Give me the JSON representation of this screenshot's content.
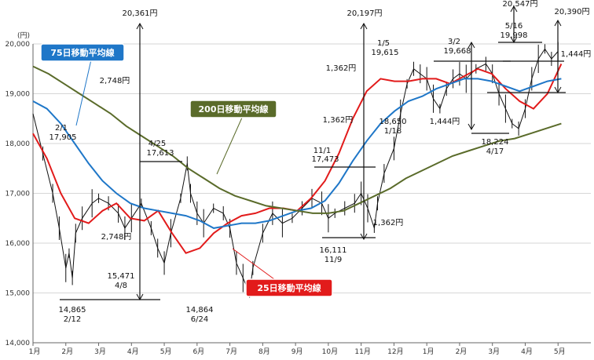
{
  "chart_data": {
    "type": "line",
    "yunit": "(円)",
    "yticks": [
      "14,000",
      "15,000",
      "16,000",
      "17,000",
      "18,000",
      "19,000",
      "20,000"
    ],
    "ylim": [
      14000,
      20000
    ],
    "xticks": [
      "1月",
      "2月",
      "3月",
      "4月",
      "5月",
      "6月",
      "7月",
      "8月",
      "9月",
      "10月",
      "11月",
      "12月",
      "1月",
      "2月",
      "3月",
      "4月",
      "5月"
    ],
    "grid": "horizontal",
    "colors": {
      "ma25": "#e21b1b",
      "ma75": "#1f77c8",
      "ma200": "#5a6b2a",
      "price": "#111111"
    },
    "series": [
      {
        "name": "25日移動平均線",
        "key": "ma25",
        "values": [
          18200,
          17700,
          17000,
          16500,
          16400,
          16650,
          16800,
          16500,
          16450,
          16650,
          16200,
          15800,
          15900,
          16200,
          16400,
          16550,
          16600,
          16700,
          16700,
          16650,
          16900,
          17250,
          17800,
          18500,
          19050,
          19300,
          19250,
          19250,
          19300,
          19300,
          19200,
          19350,
          19500,
          19400,
          19100,
          18850,
          18700,
          19000,
          19600
        ]
      },
      {
        "name": "75日移動平均線",
        "key": "ma75",
        "values": [
          18850,
          18700,
          18400,
          18000,
          17600,
          17250,
          17000,
          16800,
          16700,
          16650,
          16600,
          16550,
          16450,
          16300,
          16350,
          16400,
          16400,
          16450,
          16550,
          16650,
          16700,
          16850,
          17200,
          17650,
          18050,
          18400,
          18650,
          18850,
          18950,
          19100,
          19200,
          19300,
          19300,
          19250,
          19150,
          19050,
          19150,
          19250,
          19300
        ]
      },
      {
        "name": "200日移動平均線",
        "key": "ma200",
        "values": [
          19550,
          19400,
          19200,
          19000,
          18800,
          18600,
          18350,
          18150,
          17950,
          17750,
          17500,
          17300,
          17100,
          16950,
          16850,
          16750,
          16700,
          16650,
          16600,
          16600,
          16650,
          16800,
          16950,
          17100,
          17300,
          17450,
          17600,
          17750,
          17850,
          17950,
          18050,
          18100,
          18200,
          18300,
          18400
        ]
      }
    ],
    "price_points": [
      [
        0.0,
        18600
      ],
      [
        0.3,
        17800
      ],
      [
        0.6,
        17000
      ],
      [
        0.8,
        16300
      ],
      [
        1.0,
        15500
      ],
      [
        1.1,
        15800
      ],
      [
        1.2,
        15300
      ],
      [
        1.3,
        16200
      ],
      [
        1.5,
        16500
      ],
      [
        1.8,
        16800
      ],
      [
        2.0,
        16900
      ],
      [
        2.3,
        16800
      ],
      [
        2.6,
        16600
      ],
      [
        2.8,
        16300
      ],
      [
        3.0,
        16500
      ],
      [
        3.3,
        16800
      ],
      [
        3.6,
        16300
      ],
      [
        3.8,
        15900
      ],
      [
        4.0,
        15600
      ],
      [
        4.2,
        16200
      ],
      [
        4.5,
        16900
      ],
      [
        4.7,
        17600
      ],
      [
        4.8,
        17000
      ],
      [
        5.0,
        16600
      ],
      [
        5.2,
        16400
      ],
      [
        5.5,
        16700
      ],
      [
        5.8,
        16600
      ],
      [
        6.0,
        16300
      ],
      [
        6.2,
        15600
      ],
      [
        6.4,
        15300
      ],
      [
        6.6,
        15000
      ],
      [
        6.7,
        15500
      ],
      [
        7.0,
        16200
      ],
      [
        7.3,
        16600
      ],
      [
        7.6,
        16400
      ],
      [
        7.9,
        16500
      ],
      [
        8.2,
        16700
      ],
      [
        8.5,
        16900
      ],
      [
        8.8,
        16800
      ],
      [
        9.0,
        16500
      ],
      [
        9.2,
        16600
      ],
      [
        9.5,
        16700
      ],
      [
        9.8,
        16800
      ],
      [
        10.0,
        17000
      ],
      [
        10.2,
        16700
      ],
      [
        10.4,
        16300
      ],
      [
        10.5,
        16800
      ],
      [
        10.7,
        17400
      ],
      [
        11.0,
        17900
      ],
      [
        11.2,
        18600
      ],
      [
        11.4,
        19200
      ],
      [
        11.6,
        19500
      ],
      [
        11.8,
        19400
      ],
      [
        12.0,
        19300
      ],
      [
        12.2,
        18900
      ],
      [
        12.4,
        18700
      ],
      [
        12.6,
        19100
      ],
      [
        12.8,
        19300
      ],
      [
        13.0,
        19400
      ],
      [
        13.2,
        19300
      ],
      [
        13.5,
        19500
      ],
      [
        13.8,
        19600
      ],
      [
        14.0,
        19400
      ],
      [
        14.2,
        19000
      ],
      [
        14.4,
        18700
      ],
      [
        14.6,
        18400
      ],
      [
        14.8,
        18300
      ],
      [
        15.0,
        18700
      ],
      [
        15.2,
        19300
      ],
      [
        15.4,
        19700
      ],
      [
        15.6,
        19900
      ],
      [
        15.8,
        19700
      ],
      [
        16.0,
        19850
      ]
    ],
    "annotations": {
      "high_1": {
        "value": "20,361円",
        "color": "#e21b1b"
      },
      "high_2": {
        "value": "20,197円",
        "color": "#e21b1b"
      },
      "high_3": {
        "value": "20,547円",
        "color": "#e21b1b"
      },
      "high_4": {
        "value": "20,390円",
        "color": "#e21b1b"
      },
      "diff_2748": "2,748円",
      "diff_2748b": "2,748円",
      "diff_1362a": "1,362円",
      "diff_1362b": "1,362円",
      "diff_1362c": "1,362円",
      "diff_1444a": "1,444円",
      "diff_1444b": "1,444円",
      "p_14865": [
        "14,865",
        "2/12"
      ],
      "p_15471": [
        "15,471",
        "4/8"
      ],
      "p_17613": [
        "4/25",
        "17,613"
      ],
      "p_17905": [
        "2/1",
        "17,905"
      ],
      "p_14864": [
        "14,864",
        "6/24"
      ],
      "p_17473": [
        "11/1",
        "17,473"
      ],
      "p_16111": [
        "16,111",
        "11/9"
      ],
      "p_19615": [
        "1/5",
        "19,615"
      ],
      "p_18650": [
        "18,650",
        "1/18"
      ],
      "p_19668": [
        "3/2",
        "19,668"
      ],
      "p_18224": [
        "18,224",
        "4/17"
      ],
      "p_19998": [
        "5/16",
        "19,998"
      ]
    },
    "legend_boxes": {
      "ma75": "75日移動平均線",
      "ma200": "200日移動平均線",
      "ma25": "25日移動平均線"
    }
  }
}
